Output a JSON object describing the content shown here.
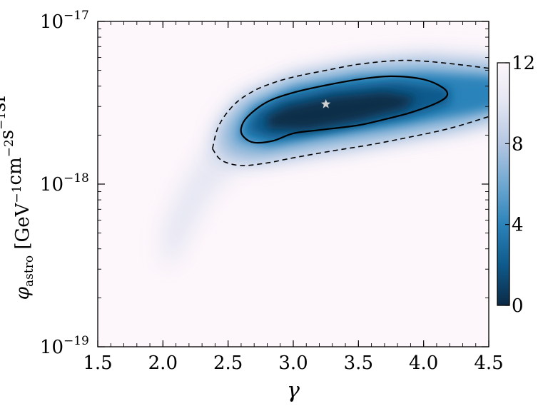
{
  "chart_data": {
    "type": "heatmap",
    "xlabel": "γ",
    "ylabel": {
      "symbol": "φ",
      "subscript": "astro",
      "units": [
        {
          "t": " [GeV",
          "sup": "−1"
        },
        {
          "t": "cm",
          "sup": "−2"
        },
        {
          "t": "s",
          "sup": "−1"
        },
        {
          "t": "sr",
          "sup": "−1"
        },
        {
          "t": "]",
          "sup": ""
        }
      ]
    },
    "xlim": [
      1.5,
      4.5
    ],
    "ylim": [
      1e-19,
      1e-17
    ],
    "yscale": "log",
    "x_ticks": [
      1.5,
      2.0,
      2.5,
      3.0,
      3.5,
      4.0,
      4.5
    ],
    "x_tick_labels": [
      "1.5",
      "2.0",
      "2.5",
      "3.0",
      "3.5",
      "4.0",
      "4.5"
    ],
    "y_ticks": [
      {
        "value": 1e-19,
        "base": "10",
        "exp": "−19"
      },
      {
        "value": 1e-18,
        "base": "10",
        "exp": "−18"
      },
      {
        "value": 1e-17,
        "base": "10",
        "exp": "−17"
      }
    ],
    "colorbar": {
      "range": [
        0,
        12
      ],
      "ticks": [
        0,
        4,
        8,
        12
      ],
      "tick_labels": [
        "0",
        "4",
        "8",
        "12"
      ],
      "colormap": "PuBu_r",
      "colors": [
        "#0b2a45",
        "#0f5a8c",
        "#2b83ba",
        "#6fa8d1",
        "#b4c6e2",
        "#e3e6f2",
        "#fdf6fb"
      ]
    },
    "background_color": "#fdf6fb",
    "best_fit": {
      "x": 3.25,
      "y": 3.1e-18,
      "marker": "star",
      "color": "#d0d0d0"
    },
    "contour_solid": [
      [
        2.6,
        2.2e-18
      ],
      [
        2.65,
        2.6e-18
      ],
      [
        2.8,
        3.2e-18
      ],
      [
        3.0,
        3.65e-18
      ],
      [
        3.25,
        4.05e-18
      ],
      [
        3.5,
        4.4e-18
      ],
      [
        3.75,
        4.6e-18
      ],
      [
        4.0,
        4.4e-18
      ],
      [
        4.15,
        3.9e-18
      ],
      [
        4.18,
        3.5e-18
      ],
      [
        4.1,
        3.15e-18
      ],
      [
        3.9,
        2.75e-18
      ],
      [
        3.7,
        2.5e-18
      ],
      [
        3.5,
        2.3e-18
      ],
      [
        3.2,
        2.15e-18
      ],
      [
        3.0,
        2.05e-18
      ],
      [
        2.85,
        1.85e-18
      ],
      [
        2.7,
        1.8e-18
      ],
      [
        2.62,
        1.95e-18
      ]
    ],
    "contour_dashed": [
      [
        2.38,
        1.65e-18
      ],
      [
        2.43,
        2.3e-18
      ],
      [
        2.55,
        3.1e-18
      ],
      [
        2.7,
        3.75e-18
      ],
      [
        2.85,
        4.2e-18
      ],
      [
        3.0,
        4.55e-18
      ],
      [
        3.25,
        5e-18
      ],
      [
        3.5,
        5.45e-18
      ],
      [
        3.8,
        5.75e-18
      ],
      [
        4.0,
        5.7e-18
      ],
      [
        4.25,
        5.45e-18
      ],
      [
        4.5,
        5.15e-18
      ]
    ],
    "contour_dashed_lower": [
      [
        2.38,
        1.65e-18
      ],
      [
        2.45,
        1.4e-18
      ],
      [
        2.6,
        1.3e-18
      ],
      [
        2.8,
        1.35e-18
      ],
      [
        3.0,
        1.45e-18
      ],
      [
        3.3,
        1.6e-18
      ],
      [
        3.6,
        1.75e-18
      ],
      [
        3.9,
        1.95e-18
      ],
      [
        4.2,
        2.2e-18
      ],
      [
        4.5,
        2.6e-18
      ]
    ]
  }
}
